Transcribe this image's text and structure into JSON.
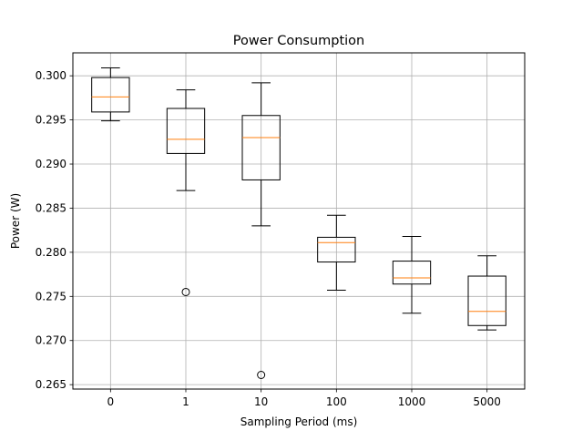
{
  "chart_data": {
    "type": "box",
    "title": "Power Consumption",
    "xlabel": "Sampling Period (ms)",
    "ylabel": "Power (W)",
    "categories": [
      "0",
      "1",
      "10",
      "100",
      "1000",
      "5000"
    ],
    "ylim": [
      0.2645,
      0.3026
    ],
    "yticks": [
      0.265,
      0.27,
      0.275,
      0.28,
      0.285,
      0.29,
      0.295,
      0.3
    ],
    "ytick_labels": [
      "0.265",
      "0.270",
      "0.275",
      "0.280",
      "0.285",
      "0.290",
      "0.295",
      "0.300"
    ],
    "grid": true,
    "boxes": [
      {
        "label": "0",
        "whisker_low": 0.2949,
        "q1": 0.2959,
        "median": 0.2976,
        "q3": 0.2998,
        "whisker_high": 0.3009,
        "outliers": []
      },
      {
        "label": "1",
        "whisker_low": 0.287,
        "q1": 0.2912,
        "median": 0.2928,
        "q3": 0.2963,
        "whisker_high": 0.2984,
        "outliers": [
          0.2755
        ]
      },
      {
        "label": "10",
        "whisker_low": 0.283,
        "q1": 0.2882,
        "median": 0.293,
        "q3": 0.2955,
        "whisker_high": 0.2992,
        "outliers": [
          0.2661
        ]
      },
      {
        "label": "100",
        "whisker_low": 0.2757,
        "q1": 0.2789,
        "median": 0.2811,
        "q3": 0.2817,
        "whisker_high": 0.2842,
        "outliers": []
      },
      {
        "label": "1000",
        "whisker_low": 0.2731,
        "q1": 0.2764,
        "median": 0.2771,
        "q3": 0.279,
        "whisker_high": 0.2818,
        "outliers": []
      },
      {
        "label": "5000",
        "whisker_low": 0.2712,
        "q1": 0.2717,
        "median": 0.2733,
        "q3": 0.2773,
        "whisker_high": 0.2796,
        "outliers": []
      }
    ],
    "colors": {
      "box": "#000000",
      "median": "#ff7f0e",
      "grid": "#b0b0b0"
    }
  }
}
